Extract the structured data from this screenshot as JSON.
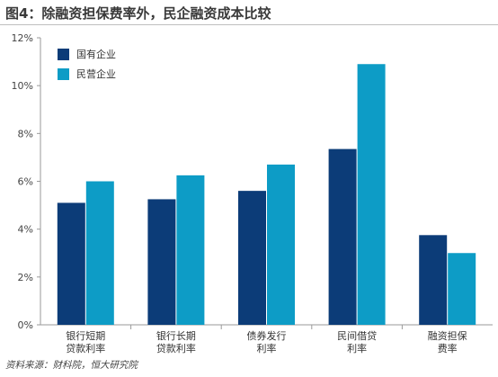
{
  "title": "图4：除融资担保费率外，民企融资成本比较",
  "source": "资料来源：财科院，恒大研究院",
  "colors": {
    "soe": "#0c3c78",
    "private": "#0d9cc6",
    "axis": "#9a9a9a"
  },
  "chart_data": {
    "type": "bar",
    "categories": [
      [
        "银行短期",
        "贷款利率"
      ],
      [
        "银行长期",
        "贷款利率"
      ],
      [
        "债券发行",
        "利率"
      ],
      [
        "民间借贷",
        "利率"
      ],
      [
        "融资担保",
        "费率"
      ]
    ],
    "series": [
      {
        "name": "国有企业",
        "values": [
          5.1,
          5.25,
          5.6,
          7.35,
          3.75
        ]
      },
      {
        "name": "民营企业",
        "values": [
          6.0,
          6.25,
          6.7,
          10.9,
          3.0
        ]
      }
    ],
    "ylim": [
      0,
      12
    ],
    "yticks": [
      "0%",
      "2%",
      "4%",
      "6%",
      "8%",
      "10%",
      "12%"
    ],
    "ytick_values": [
      0,
      2,
      4,
      6,
      8,
      10,
      12
    ],
    "legend": "top-left",
    "grid": false
  }
}
